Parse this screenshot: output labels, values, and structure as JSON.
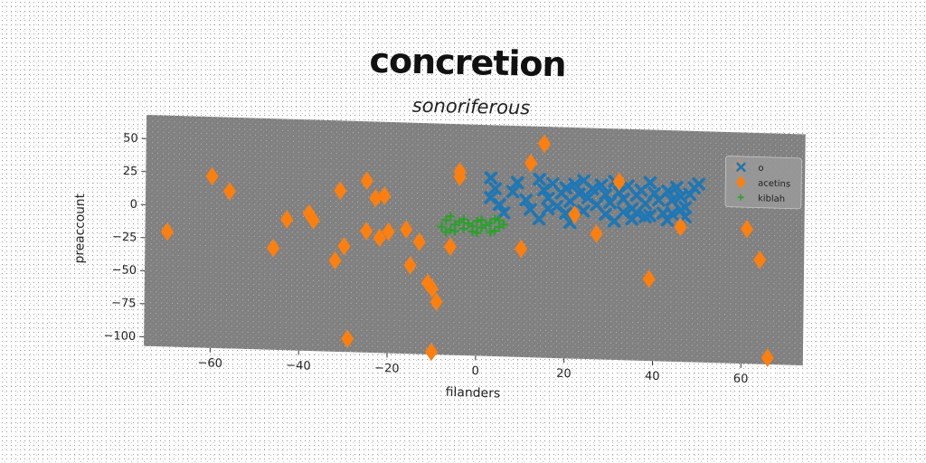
{
  "chart_data": {
    "type": "scatter",
    "title": "concretion",
    "subtitle": "sonoriferous",
    "xlabel": "filanders",
    "ylabel": "preaccount",
    "xlim": [
      -75,
      74
    ],
    "ylim": [
      -107,
      68
    ],
    "xticks": [
      -60,
      -40,
      -20,
      0,
      20,
      40,
      60
    ],
    "yticks": [
      50,
      25,
      0,
      -25,
      -50,
      -75,
      -100
    ],
    "grid": false,
    "legend_position": "top-right",
    "series": [
      {
        "name": "o",
        "color": "#1f77b4",
        "marker": "x-thick",
        "points": [
          [
            3,
            28
          ],
          [
            4,
            20
          ],
          [
            3,
            13
          ],
          [
            5,
            8
          ],
          [
            8,
            18
          ],
          [
            6,
            2
          ],
          [
            9,
            25
          ],
          [
            11,
            12
          ],
          [
            12,
            5
          ],
          [
            14,
            28
          ],
          [
            15,
            20
          ],
          [
            16,
            14
          ],
          [
            17,
            25
          ],
          [
            18,
            8
          ],
          [
            19,
            18
          ],
          [
            20,
            22
          ],
          [
            21,
            12
          ],
          [
            22,
            25
          ],
          [
            23,
            18
          ],
          [
            24,
            28
          ],
          [
            25,
            15
          ],
          [
            26,
            22
          ],
          [
            27,
            10
          ],
          [
            28,
            25
          ],
          [
            29,
            18
          ],
          [
            30,
            12
          ],
          [
            31,
            28
          ],
          [
            32,
            20
          ],
          [
            33,
            15
          ],
          [
            34,
            25
          ],
          [
            35,
            8
          ],
          [
            36,
            18
          ],
          [
            37,
            22
          ],
          [
            38,
            12
          ],
          [
            39,
            28
          ],
          [
            40,
            20
          ],
          [
            41,
            15
          ],
          [
            42,
            5
          ],
          [
            43,
            22
          ],
          [
            44,
            15
          ],
          [
            45,
            25
          ],
          [
            46,
            18
          ],
          [
            47,
            10
          ],
          [
            48,
            20
          ],
          [
            49,
            25
          ],
          [
            50,
            28
          ],
          [
            14,
            -2
          ],
          [
            16,
            6
          ],
          [
            20,
            3
          ],
          [
            24,
            5
          ],
          [
            29,
            3
          ],
          [
            33,
            5
          ],
          [
            36,
            5
          ],
          [
            39,
            3
          ],
          [
            44,
            5
          ],
          [
            47,
            3
          ],
          [
            21,
            -4
          ],
          [
            31,
            -2
          ],
          [
            35,
            0
          ],
          [
            38,
            2
          ],
          [
            43,
            0
          ],
          [
            46,
            8
          ]
        ]
      },
      {
        "name": "acetins",
        "color": "#ff7f0e",
        "marker": "diamond",
        "points": [
          [
            -70,
            -20
          ],
          [
            -60,
            23
          ],
          [
            -56,
            12
          ],
          [
            -46,
            -30
          ],
          [
            -43,
            -8
          ],
          [
            -38,
            -3
          ],
          [
            -37,
            -8
          ],
          [
            -32,
            -38
          ],
          [
            -31,
            15
          ],
          [
            -30,
            -27
          ],
          [
            -29,
            -97
          ],
          [
            -25,
            23
          ],
          [
            -25,
            -15
          ],
          [
            -23,
            10
          ],
          [
            -22,
            -20
          ],
          [
            -21,
            12
          ],
          [
            -20,
            -15
          ],
          [
            -16,
            -13
          ],
          [
            -15,
            -40
          ],
          [
            -13,
            -22
          ],
          [
            -11,
            -53
          ],
          [
            -10,
            -57
          ],
          [
            -10,
            -105
          ],
          [
            -9,
            -67
          ],
          [
            -6,
            -25
          ],
          [
            -4,
            32
          ],
          [
            -4,
            28
          ],
          [
            10,
            -25
          ],
          [
            12,
            40
          ],
          [
            15,
            55
          ],
          [
            22,
            2
          ],
          [
            27,
            -12
          ],
          [
            32,
            28
          ],
          [
            39,
            -45
          ],
          [
            46,
            -5
          ],
          [
            59,
            42
          ],
          [
            61,
            -5
          ],
          [
            64,
            -28
          ],
          [
            66,
            -102
          ]
        ]
      },
      {
        "name": "kiblah",
        "color": "#2ca02c",
        "marker": "plus",
        "points": [
          [
            -8,
            -10
          ],
          [
            -7,
            -5
          ],
          [
            -6,
            -12
          ],
          [
            -5,
            -8
          ],
          [
            -4,
            -6
          ],
          [
            -3,
            -11
          ],
          [
            -2,
            -7
          ],
          [
            -1,
            -9
          ],
          [
            0,
            -5
          ],
          [
            1,
            -10
          ],
          [
            2,
            -8
          ],
          [
            3,
            -6
          ],
          [
            4,
            -12
          ],
          [
            5,
            -9
          ],
          [
            6,
            -7
          ],
          [
            -7,
            -14
          ],
          [
            -5,
            -13
          ],
          [
            -3,
            -4
          ],
          [
            -1,
            -13
          ],
          [
            1,
            -4
          ],
          [
            3,
            -13
          ],
          [
            5,
            -4
          ],
          [
            -6,
            -2
          ],
          [
            0,
            -14
          ],
          [
            4,
            -3
          ]
        ]
      }
    ]
  }
}
